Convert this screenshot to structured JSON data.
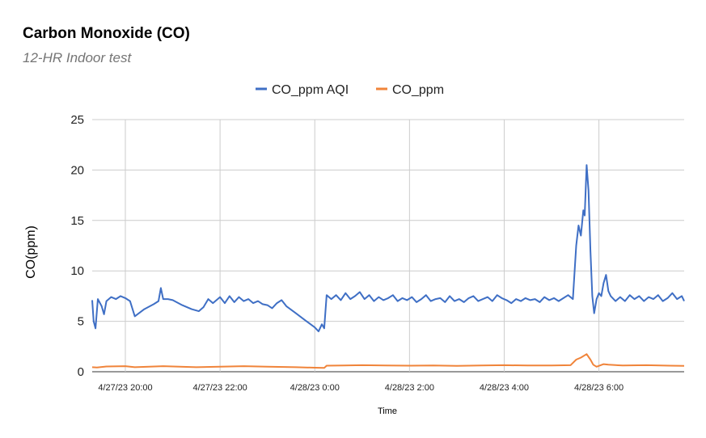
{
  "chart_data": {
    "type": "line",
    "title": "Carbon Monoxide (CO)",
    "subtitle": "12-HR Indoor test",
    "xlabel": "Time",
    "ylabel": "CO(ppm)",
    "ylim": [
      0,
      25
    ],
    "y_ticks": [
      "0",
      "5",
      "10",
      "15",
      "20",
      "25"
    ],
    "x_range_hours": [
      19.3,
      31.8
    ],
    "x_ticks": [
      {
        "label": "4/27/23 20:00",
        "hour": 20
      },
      {
        "label": "4/27/23 22:00",
        "hour": 22
      },
      {
        "label": "4/28/23 0:00",
        "hour": 24
      },
      {
        "label": "4/28/23 2:00",
        "hour": 26
      },
      {
        "label": "4/28/23 4:00",
        "hour": 28
      },
      {
        "label": "4/28/23 6:00",
        "hour": 30
      }
    ],
    "grid": true,
    "legend_position": "top",
    "series": [
      {
        "name": "CO_ppm AQI",
        "color": "#3f6fc5",
        "points": [
          [
            19.3,
            7.1
          ],
          [
            19.33,
            5.0
          ],
          [
            19.37,
            4.3
          ],
          [
            19.42,
            7.2
          ],
          [
            19.5,
            6.5
          ],
          [
            19.55,
            5.7
          ],
          [
            19.6,
            7.0
          ],
          [
            19.7,
            7.4
          ],
          [
            19.8,
            7.2
          ],
          [
            19.9,
            7.5
          ],
          [
            20.0,
            7.3
          ],
          [
            20.1,
            7.0
          ],
          [
            20.2,
            5.5
          ],
          [
            20.4,
            6.2
          ],
          [
            20.6,
            6.7
          ],
          [
            20.7,
            7.0
          ],
          [
            20.75,
            8.3
          ],
          [
            20.8,
            7.2
          ],
          [
            20.9,
            7.2
          ],
          [
            21.0,
            7.1
          ],
          [
            21.2,
            6.6
          ],
          [
            21.4,
            6.2
          ],
          [
            21.55,
            6.0
          ],
          [
            21.65,
            6.4
          ],
          [
            21.75,
            7.2
          ],
          [
            21.85,
            6.8
          ],
          [
            22.0,
            7.4
          ],
          [
            22.1,
            6.8
          ],
          [
            22.2,
            7.5
          ],
          [
            22.3,
            6.9
          ],
          [
            22.4,
            7.4
          ],
          [
            22.5,
            7.0
          ],
          [
            22.6,
            7.2
          ],
          [
            22.7,
            6.8
          ],
          [
            22.8,
            7.0
          ],
          [
            22.9,
            6.7
          ],
          [
            23.0,
            6.6
          ],
          [
            23.1,
            6.3
          ],
          [
            23.2,
            6.8
          ],
          [
            23.3,
            7.1
          ],
          [
            23.4,
            6.5
          ],
          [
            23.6,
            5.8
          ],
          [
            23.8,
            5.1
          ],
          [
            24.0,
            4.4
          ],
          [
            24.08,
            4.0
          ],
          [
            24.15,
            4.7
          ],
          [
            24.2,
            4.3
          ],
          [
            24.25,
            7.6
          ],
          [
            24.35,
            7.2
          ],
          [
            24.45,
            7.6
          ],
          [
            24.55,
            7.1
          ],
          [
            24.65,
            7.8
          ],
          [
            24.75,
            7.2
          ],
          [
            24.85,
            7.5
          ],
          [
            24.95,
            7.9
          ],
          [
            25.05,
            7.2
          ],
          [
            25.15,
            7.6
          ],
          [
            25.25,
            7.0
          ],
          [
            25.35,
            7.4
          ],
          [
            25.45,
            7.1
          ],
          [
            25.55,
            7.3
          ],
          [
            25.65,
            7.6
          ],
          [
            25.75,
            7.0
          ],
          [
            25.85,
            7.3
          ],
          [
            25.95,
            7.1
          ],
          [
            26.05,
            7.4
          ],
          [
            26.15,
            6.9
          ],
          [
            26.25,
            7.2
          ],
          [
            26.35,
            7.6
          ],
          [
            26.45,
            7.0
          ],
          [
            26.55,
            7.2
          ],
          [
            26.65,
            7.3
          ],
          [
            26.75,
            6.9
          ],
          [
            26.85,
            7.5
          ],
          [
            26.95,
            7.0
          ],
          [
            27.05,
            7.2
          ],
          [
            27.15,
            6.9
          ],
          [
            27.25,
            7.3
          ],
          [
            27.35,
            7.5
          ],
          [
            27.45,
            7.0
          ],
          [
            27.55,
            7.2
          ],
          [
            27.65,
            7.4
          ],
          [
            27.75,
            7.0
          ],
          [
            27.85,
            7.6
          ],
          [
            27.95,
            7.3
          ],
          [
            28.05,
            7.1
          ],
          [
            28.15,
            6.8
          ],
          [
            28.25,
            7.2
          ],
          [
            28.35,
            7.0
          ],
          [
            28.45,
            7.3
          ],
          [
            28.55,
            7.1
          ],
          [
            28.65,
            7.2
          ],
          [
            28.75,
            6.9
          ],
          [
            28.85,
            7.4
          ],
          [
            28.95,
            7.1
          ],
          [
            29.05,
            7.3
          ],
          [
            29.15,
            7.0
          ],
          [
            29.25,
            7.3
          ],
          [
            29.35,
            7.6
          ],
          [
            29.45,
            7.2
          ],
          [
            29.52,
            12.5
          ],
          [
            29.57,
            14.5
          ],
          [
            29.62,
            13.5
          ],
          [
            29.67,
            16.0
          ],
          [
            29.7,
            15.5
          ],
          [
            29.74,
            20.5
          ],
          [
            29.78,
            18.0
          ],
          [
            29.82,
            12.0
          ],
          [
            29.86,
            7.5
          ],
          [
            29.9,
            5.8
          ],
          [
            29.95,
            7.2
          ],
          [
            30.0,
            7.8
          ],
          [
            30.05,
            7.5
          ],
          [
            30.1,
            8.8
          ],
          [
            30.15,
            9.6
          ],
          [
            30.2,
            8.0
          ],
          [
            30.25,
            7.5
          ],
          [
            30.35,
            7.0
          ],
          [
            30.45,
            7.4
          ],
          [
            30.55,
            7.0
          ],
          [
            30.65,
            7.6
          ],
          [
            30.75,
            7.2
          ],
          [
            30.85,
            7.5
          ],
          [
            30.95,
            7.0
          ],
          [
            31.05,
            7.4
          ],
          [
            31.15,
            7.2
          ],
          [
            31.25,
            7.6
          ],
          [
            31.35,
            7.0
          ],
          [
            31.45,
            7.3
          ],
          [
            31.55,
            7.8
          ],
          [
            31.65,
            7.2
          ],
          [
            31.75,
            7.5
          ],
          [
            31.8,
            7.0
          ]
        ]
      },
      {
        "name": "CO_ppm",
        "color": "#f0843a",
        "points": [
          [
            19.3,
            0.45
          ],
          [
            19.4,
            0.42
          ],
          [
            19.6,
            0.52
          ],
          [
            20.0,
            0.55
          ],
          [
            20.2,
            0.45
          ],
          [
            20.8,
            0.55
          ],
          [
            21.5,
            0.45
          ],
          [
            22.0,
            0.5
          ],
          [
            22.5,
            0.55
          ],
          [
            23.0,
            0.5
          ],
          [
            23.6,
            0.45
          ],
          [
            24.0,
            0.4
          ],
          [
            24.2,
            0.38
          ],
          [
            24.25,
            0.6
          ],
          [
            24.6,
            0.62
          ],
          [
            25.0,
            0.65
          ],
          [
            25.5,
            0.62
          ],
          [
            26.0,
            0.6
          ],
          [
            26.5,
            0.62
          ],
          [
            27.0,
            0.58
          ],
          [
            27.5,
            0.62
          ],
          [
            28.0,
            0.65
          ],
          [
            28.5,
            0.62
          ],
          [
            29.0,
            0.62
          ],
          [
            29.4,
            0.65
          ],
          [
            29.52,
            1.2
          ],
          [
            29.62,
            1.4
          ],
          [
            29.74,
            1.75
          ],
          [
            29.82,
            1.2
          ],
          [
            29.88,
            0.7
          ],
          [
            29.95,
            0.5
          ],
          [
            30.1,
            0.75
          ],
          [
            30.2,
            0.7
          ],
          [
            30.5,
            0.62
          ],
          [
            31.0,
            0.65
          ],
          [
            31.5,
            0.6
          ],
          [
            31.8,
            0.58
          ]
        ]
      }
    ]
  }
}
